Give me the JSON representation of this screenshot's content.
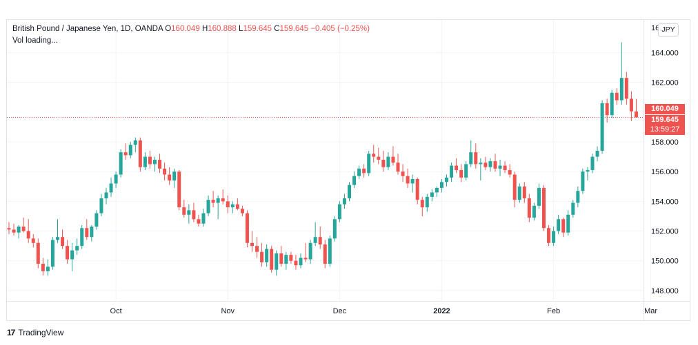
{
  "legend": {
    "symbol": "British Pound / Japanese Yen, 1D, OANDA",
    "open_key": "O",
    "open": "160.049",
    "high_key": "H",
    "high": "160.888",
    "low_key": "L",
    "low": "159.645",
    "close_key": "C",
    "close": "159.645",
    "change": "−0.405 (−0.25%)",
    "volume": "Vol loading..."
  },
  "currency_badge": "JPY",
  "top_tick_partial": "16",
  "price_labels": {
    "last": "160.049",
    "current": "159.645",
    "countdown": "13:59:27"
  },
  "footer": {
    "logo": "17",
    "brand": "TradingView"
  },
  "colors": {
    "up": "#26a69a",
    "down": "#ef5350",
    "grid": "#f0f3fa",
    "axis_text": "#131722"
  },
  "chart_data": {
    "type": "candlestick",
    "ylim": [
      147.3,
      166.2
    ],
    "y_ticks": [
      148.0,
      150.0,
      152.0,
      154.0,
      156.0,
      158.0,
      162.0,
      164.0
    ],
    "y_tick_labels": [
      "148.000",
      "150.000",
      "152.000",
      "154.000",
      "156.000",
      "158.000",
      "162.000",
      "164.000"
    ],
    "x_ticks": [
      {
        "label": "Oct",
        "index": 22,
        "bold": false
      },
      {
        "label": "Nov",
        "index": 45,
        "bold": false
      },
      {
        "label": "Dec",
        "index": 68,
        "bold": false
      },
      {
        "label": "2022",
        "index": 89,
        "bold": true
      },
      {
        "label": "Feb",
        "index": 112,
        "bold": false
      },
      {
        "label": "Mar",
        "index": 132,
        "bold": false
      }
    ],
    "price_line": 159.645,
    "candles": [
      [
        152.2,
        152.6,
        151.8,
        152.1
      ],
      [
        152.1,
        152.5,
        151.7,
        151.9
      ],
      [
        151.9,
        152.4,
        151.5,
        152.3
      ],
      [
        152.3,
        152.9,
        151.9,
        152.0
      ],
      [
        152.0,
        152.8,
        151.2,
        151.5
      ],
      [
        151.5,
        151.8,
        150.9,
        151.2
      ],
      [
        151.2,
        151.5,
        149.5,
        149.8
      ],
      [
        149.8,
        150.2,
        149.0,
        149.3
      ],
      [
        149.3,
        150.1,
        149.0,
        149.6
      ],
      [
        149.6,
        151.6,
        149.4,
        151.4
      ],
      [
        151.4,
        152.8,
        151.2,
        151.6
      ],
      [
        151.6,
        152.1,
        150.8,
        151.0
      ],
      [
        151.0,
        151.4,
        149.8,
        150.1
      ],
      [
        150.1,
        151.2,
        149.3,
        150.7
      ],
      [
        150.7,
        151.5,
        150.4,
        151.0
      ],
      [
        151.0,
        152.4,
        150.8,
        152.2
      ],
      [
        152.2,
        152.8,
        151.4,
        151.6
      ],
      [
        151.6,
        152.4,
        151.3,
        152.3
      ],
      [
        152.3,
        153.4,
        152.1,
        153.2
      ],
      [
        153.2,
        154.5,
        153.0,
        154.2
      ],
      [
        154.2,
        154.9,
        153.8,
        154.6
      ],
      [
        154.6,
        155.6,
        154.3,
        155.2
      ],
      [
        155.2,
        156.0,
        154.9,
        155.8
      ],
      [
        155.8,
        157.5,
        155.6,
        157.3
      ],
      [
        157.3,
        157.9,
        156.8,
        157.1
      ],
      [
        157.1,
        158.0,
        156.9,
        157.8
      ],
      [
        157.8,
        158.3,
        157.3,
        158.1
      ],
      [
        158.1,
        158.3,
        156.0,
        156.3
      ],
      [
        156.3,
        157.3,
        156.1,
        157.0
      ],
      [
        157.0,
        157.4,
        156.2,
        156.5
      ],
      [
        156.5,
        157.0,
        156.0,
        156.8
      ],
      [
        156.8,
        157.2,
        155.9,
        156.2
      ],
      [
        156.2,
        156.6,
        155.4,
        155.8
      ],
      [
        155.8,
        156.3,
        155.1,
        155.4
      ],
      [
        155.4,
        156.2,
        154.9,
        156.0
      ],
      [
        156.0,
        156.1,
        153.4,
        153.6
      ],
      [
        153.6,
        154.1,
        152.9,
        153.1
      ],
      [
        153.1,
        153.8,
        152.5,
        153.4
      ],
      [
        153.4,
        153.9,
        152.6,
        152.8
      ],
      [
        152.8,
        153.1,
        152.3,
        152.5
      ],
      [
        152.5,
        153.5,
        152.3,
        153.2
      ],
      [
        153.2,
        154.4,
        153.0,
        154.1
      ],
      [
        154.1,
        154.7,
        153.6,
        153.9
      ],
      [
        153.9,
        154.4,
        152.8,
        154.2
      ],
      [
        154.2,
        154.8,
        153.8,
        154.0
      ],
      [
        154.0,
        154.4,
        153.2,
        153.6
      ],
      [
        153.6,
        154.0,
        153.2,
        153.8
      ],
      [
        153.8,
        154.2,
        153.4,
        153.5
      ],
      [
        153.5,
        153.7,
        153.0,
        153.2
      ],
      [
        153.2,
        153.4,
        150.9,
        151.2
      ],
      [
        151.2,
        152.0,
        150.6,
        151.0
      ],
      [
        151.0,
        151.6,
        150.2,
        150.6
      ],
      [
        150.6,
        151.2,
        149.6,
        149.9
      ],
      [
        149.9,
        151.1,
        149.6,
        150.8
      ],
      [
        150.8,
        151.0,
        149.2,
        149.4
      ],
      [
        149.4,
        150.7,
        149.0,
        150.5
      ],
      [
        150.5,
        151.0,
        149.6,
        149.8
      ],
      [
        149.8,
        150.6,
        149.4,
        150.4
      ],
      [
        150.4,
        150.6,
        149.8,
        150.0
      ],
      [
        150.0,
        150.4,
        149.4,
        149.7
      ],
      [
        149.7,
        150.5,
        149.5,
        150.2
      ],
      [
        150.2,
        151.2,
        149.9,
        150.1
      ],
      [
        150.1,
        151.4,
        149.8,
        151.2
      ],
      [
        151.2,
        152.6,
        151.0,
        151.6
      ],
      [
        151.6,
        152.3,
        150.8,
        151.1
      ],
      [
        151.1,
        151.4,
        149.5,
        149.8
      ],
      [
        149.8,
        151.7,
        149.6,
        151.5
      ],
      [
        151.5,
        153.0,
        151.3,
        152.8
      ],
      [
        152.8,
        154.0,
        152.6,
        153.8
      ],
      [
        153.8,
        154.5,
        153.5,
        154.2
      ],
      [
        154.2,
        155.3,
        154.0,
        155.1
      ],
      [
        155.1,
        156.0,
        154.9,
        155.7
      ],
      [
        155.7,
        156.4,
        155.5,
        156.2
      ],
      [
        156.2,
        156.5,
        155.6,
        155.9
      ],
      [
        155.9,
        157.4,
        155.7,
        157.2
      ],
      [
        157.2,
        157.8,
        156.6,
        157.0
      ],
      [
        157.0,
        157.6,
        156.5,
        156.8
      ],
      [
        156.8,
        157.4,
        156.0,
        156.3
      ],
      [
        156.3,
        157.3,
        156.1,
        157.0
      ],
      [
        157.0,
        157.7,
        156.4,
        156.6
      ],
      [
        156.6,
        157.2,
        155.8,
        156.0
      ],
      [
        156.0,
        156.5,
        155.3,
        155.7
      ],
      [
        155.7,
        156.2,
        154.9,
        155.2
      ],
      [
        155.2,
        155.8,
        154.6,
        155.5
      ],
      [
        155.5,
        155.6,
        153.8,
        154.1
      ],
      [
        154.1,
        154.3,
        153.0,
        153.6
      ],
      [
        153.6,
        154.5,
        153.3,
        154.3
      ],
      [
        154.3,
        154.8,
        154.0,
        154.6
      ],
      [
        154.6,
        155.0,
        154.3,
        154.9
      ],
      [
        154.9,
        155.5,
        154.6,
        155.3
      ],
      [
        155.3,
        155.8,
        155.0,
        155.6
      ],
      [
        155.6,
        156.6,
        155.3,
        156.4
      ],
      [
        156.4,
        156.9,
        155.9,
        156.1
      ],
      [
        156.1,
        156.5,
        155.3,
        155.6
      ],
      [
        155.6,
        156.7,
        155.4,
        156.5
      ],
      [
        156.5,
        158.1,
        156.3,
        157.3
      ],
      [
        157.3,
        157.9,
        156.2,
        156.5
      ],
      [
        156.5,
        156.9,
        155.4,
        156.6
      ],
      [
        156.6,
        157.0,
        156.1,
        156.3
      ],
      [
        156.3,
        156.9,
        156.0,
        156.7
      ],
      [
        156.7,
        157.2,
        156.0,
        156.2
      ],
      [
        156.2,
        156.8,
        155.7,
        156.4
      ],
      [
        156.4,
        156.7,
        155.9,
        156.1
      ],
      [
        156.1,
        156.5,
        155.6,
        155.8
      ],
      [
        155.8,
        156.0,
        153.6,
        154.1
      ],
      [
        154.1,
        155.2,
        153.9,
        155.0
      ],
      [
        155.0,
        155.3,
        153.9,
        154.2
      ],
      [
        154.2,
        154.5,
        152.6,
        152.9
      ],
      [
        152.9,
        153.9,
        152.7,
        153.7
      ],
      [
        153.7,
        155.2,
        153.5,
        154.9
      ],
      [
        154.9,
        155.1,
        152.0,
        152.2
      ],
      [
        152.2,
        152.4,
        151.0,
        151.2
      ],
      [
        151.2,
        152.3,
        151.0,
        152.0
      ],
      [
        152.0,
        153.1,
        151.8,
        152.8
      ],
      [
        152.8,
        152.9,
        151.6,
        151.9
      ],
      [
        151.9,
        153.4,
        151.7,
        153.1
      ],
      [
        153.1,
        154.1,
        152.9,
        153.9
      ],
      [
        153.9,
        155.0,
        153.6,
        154.7
      ],
      [
        154.7,
        156.2,
        154.5,
        156.0
      ],
      [
        156.0,
        156.3,
        155.4,
        156.1
      ],
      [
        156.1,
        157.2,
        155.9,
        157.0
      ],
      [
        157.0,
        157.7,
        156.7,
        157.4
      ],
      [
        157.4,
        160.8,
        157.2,
        160.6
      ],
      [
        160.6,
        160.9,
        159.3,
        159.8
      ],
      [
        159.8,
        161.5,
        159.6,
        161.3
      ],
      [
        161.3,
        161.6,
        160.5,
        160.8
      ],
      [
        160.8,
        164.7,
        160.5,
        162.3
      ],
      [
        162.3,
        162.7,
        160.5,
        160.9
      ],
      [
        160.9,
        161.4,
        159.4,
        160.05
      ],
      [
        160.049,
        160.888,
        159.645,
        159.645
      ]
    ]
  }
}
